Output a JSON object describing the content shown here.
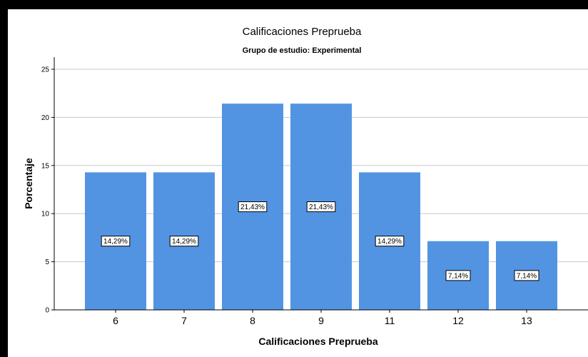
{
  "chart_data": {
    "type": "bar",
    "title": "Calificaciones Preprueba",
    "subtitle": "Grupo de estudio: Experimental",
    "xlabel": "Calificaciones Preprueba",
    "ylabel": "Porcentaje",
    "ylim": [
      0,
      25
    ],
    "yticks": [
      0,
      5,
      10,
      15,
      20,
      25
    ],
    "grid": true,
    "categories": [
      "6",
      "7",
      "8",
      "9",
      "11",
      "12",
      "13"
    ],
    "values": [
      14.29,
      14.29,
      21.43,
      21.43,
      14.29,
      7.14,
      7.14
    ],
    "data_labels": [
      "14,29%",
      "14,29%",
      "21,43%",
      "21,43%",
      "14,29%",
      "7,14%",
      "7,14%"
    ],
    "bar_color": "#5294E2",
    "grid_color": "#C8C8C8",
    "frame_color": "#000000"
  }
}
